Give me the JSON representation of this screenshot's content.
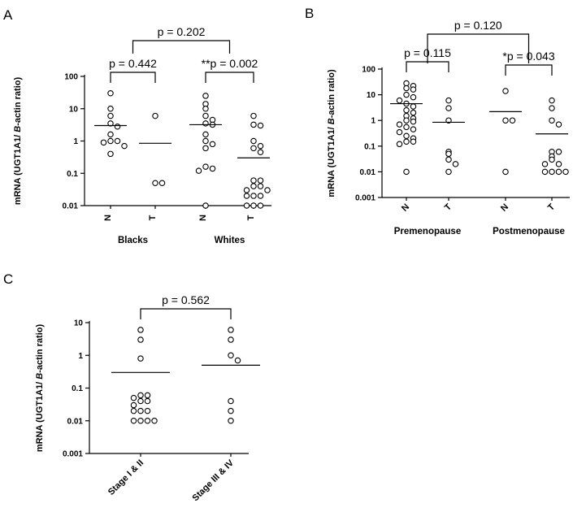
{
  "chart_data": [
    {
      "panel": "A",
      "type": "scatter",
      "yscale": "log",
      "ylim": [
        0.01,
        100
      ],
      "ylabel": [
        "mRNA (UGT1A1/ ",
        "B",
        "-actin ratio)"
      ],
      "yticks": [
        {
          "v": 100,
          "label": "100"
        },
        {
          "v": 10,
          "label": "10"
        },
        {
          "v": 1,
          "label": "1"
        },
        {
          "v": 0.1,
          "label": "0.1"
        },
        {
          "v": 0.01,
          "label": "0.01"
        }
      ],
      "categories": [
        "N",
        "T",
        "N",
        "T"
      ],
      "groups": [
        {
          "label": "Blacks",
          "from": 0,
          "to": 1
        },
        {
          "label": "Whites",
          "from": 2,
          "to": 3
        }
      ],
      "series": [
        {
          "medians": [
            3.0,
            0.85,
            3.2,
            0.3
          ],
          "points": [
            [
              30,
              10,
              6,
              3.5,
              2.8,
              1.6,
              1.0,
              1.0,
              0.9,
              0.7,
              0.4
            ],
            [
              6.0,
              0.05,
              0.05
            ],
            [
              25,
              14,
              10,
              6,
              4.5,
              3.5,
              3.2,
              1.6,
              1.0,
              0.8,
              0.6,
              0.16,
              0.14,
              0.12,
              0.01
            ],
            [
              6.0,
              3.2,
              3.0,
              1.0,
              0.7,
              0.6,
              0.45,
              0.06,
              0.06,
              0.04,
              0.04,
              0.03,
              0.03,
              0.02,
              0.02,
              0.02,
              0.01,
              0.01,
              0.01
            ]
          ]
        }
      ],
      "comparisons": [
        {
          "label": "p = 0.442",
          "a": 0,
          "b": 1
        },
        {
          "label": "**p = 0.002",
          "a": 2,
          "b": 3
        },
        {
          "label": "p = 0.202",
          "a": 0.5,
          "b": 2.5,
          "outer": true
        }
      ]
    },
    {
      "panel": "B",
      "type": "scatter",
      "yscale": "log",
      "ylim": [
        0.001,
        100
      ],
      "ylabel": [
        "mRNA (UGT1A1/ ",
        "B",
        "-actin ratio)"
      ],
      "yticks": [
        {
          "v": 100,
          "label": "100"
        },
        {
          "v": 10,
          "label": "10"
        },
        {
          "v": 1,
          "label": "1"
        },
        {
          "v": 0.1,
          "label": "0.1"
        },
        {
          "v": 0.01,
          "label": "0.01"
        },
        {
          "v": 0.001,
          "label": "0.001"
        }
      ],
      "categories": [
        "N",
        "T",
        "N",
        "T"
      ],
      "groups": [
        {
          "label": "Premenopause",
          "from": 0,
          "to": 1
        },
        {
          "label": "Postmenopause",
          "from": 2,
          "to": 3
        }
      ],
      "series": [
        {
          "medians": [
            4.5,
            0.85,
            2.2,
            0.3
          ],
          "points": [
            [
              28,
              22,
              18,
              16,
              10,
              8,
              6,
              4.5,
              3.5,
              2.5,
              2.0,
              1.5,
              1.2,
              1.0,
              0.9,
              0.7,
              0.55,
              0.45,
              0.35,
              0.25,
              0.2,
              0.15,
              0.15,
              0.12,
              0.01
            ],
            [
              6.0,
              3.0,
              1.0,
              0.06,
              0.05,
              0.03,
              0.02,
              0.01
            ],
            [
              14,
              1.0,
              1.0,
              0.01
            ],
            [
              6.0,
              3.0,
              1.0,
              0.7,
              0.06,
              0.06,
              0.04,
              0.03,
              0.02,
              0.02,
              0.01,
              0.01,
              0.01,
              0.01
            ]
          ]
        }
      ],
      "comparisons": [
        {
          "label": "p = 0.115",
          "a": 0,
          "b": 1
        },
        {
          "label": "*p = 0.043",
          "a": 2,
          "b": 3
        },
        {
          "label": "p = 0.120",
          "a": 0.5,
          "b": 2.5,
          "outer": true
        }
      ]
    },
    {
      "panel": "C",
      "type": "scatter",
      "yscale": "log",
      "ylim": [
        0.001,
        10
      ],
      "ylabel": [
        "mRNA (UGT1A1/ ",
        "B",
        "-actin ratio)"
      ],
      "yticks": [
        {
          "v": 10,
          "label": "10"
        },
        {
          "v": 1,
          "label": "1"
        },
        {
          "v": 0.1,
          "label": "0.1"
        },
        {
          "v": 0.01,
          "label": "0.01"
        },
        {
          "v": 0.001,
          "label": "0.001"
        }
      ],
      "categories": [
        "Stage I & II",
        "Stage III & IV"
      ],
      "groups": [],
      "series": [
        {
          "medians": [
            0.3,
            0.5
          ],
          "points": [
            [
              6.0,
              3.0,
              0.8,
              0.06,
              0.06,
              0.05,
              0.04,
              0.04,
              0.03,
              0.02,
              0.02,
              0.02,
              0.01,
              0.01,
              0.01,
              0.01
            ],
            [
              6.0,
              3.0,
              1.0,
              0.7,
              0.04,
              0.02,
              0.01
            ]
          ]
        }
      ],
      "comparisons": [
        {
          "label": "p = 0.562",
          "a": 0,
          "b": 1
        }
      ]
    }
  ]
}
